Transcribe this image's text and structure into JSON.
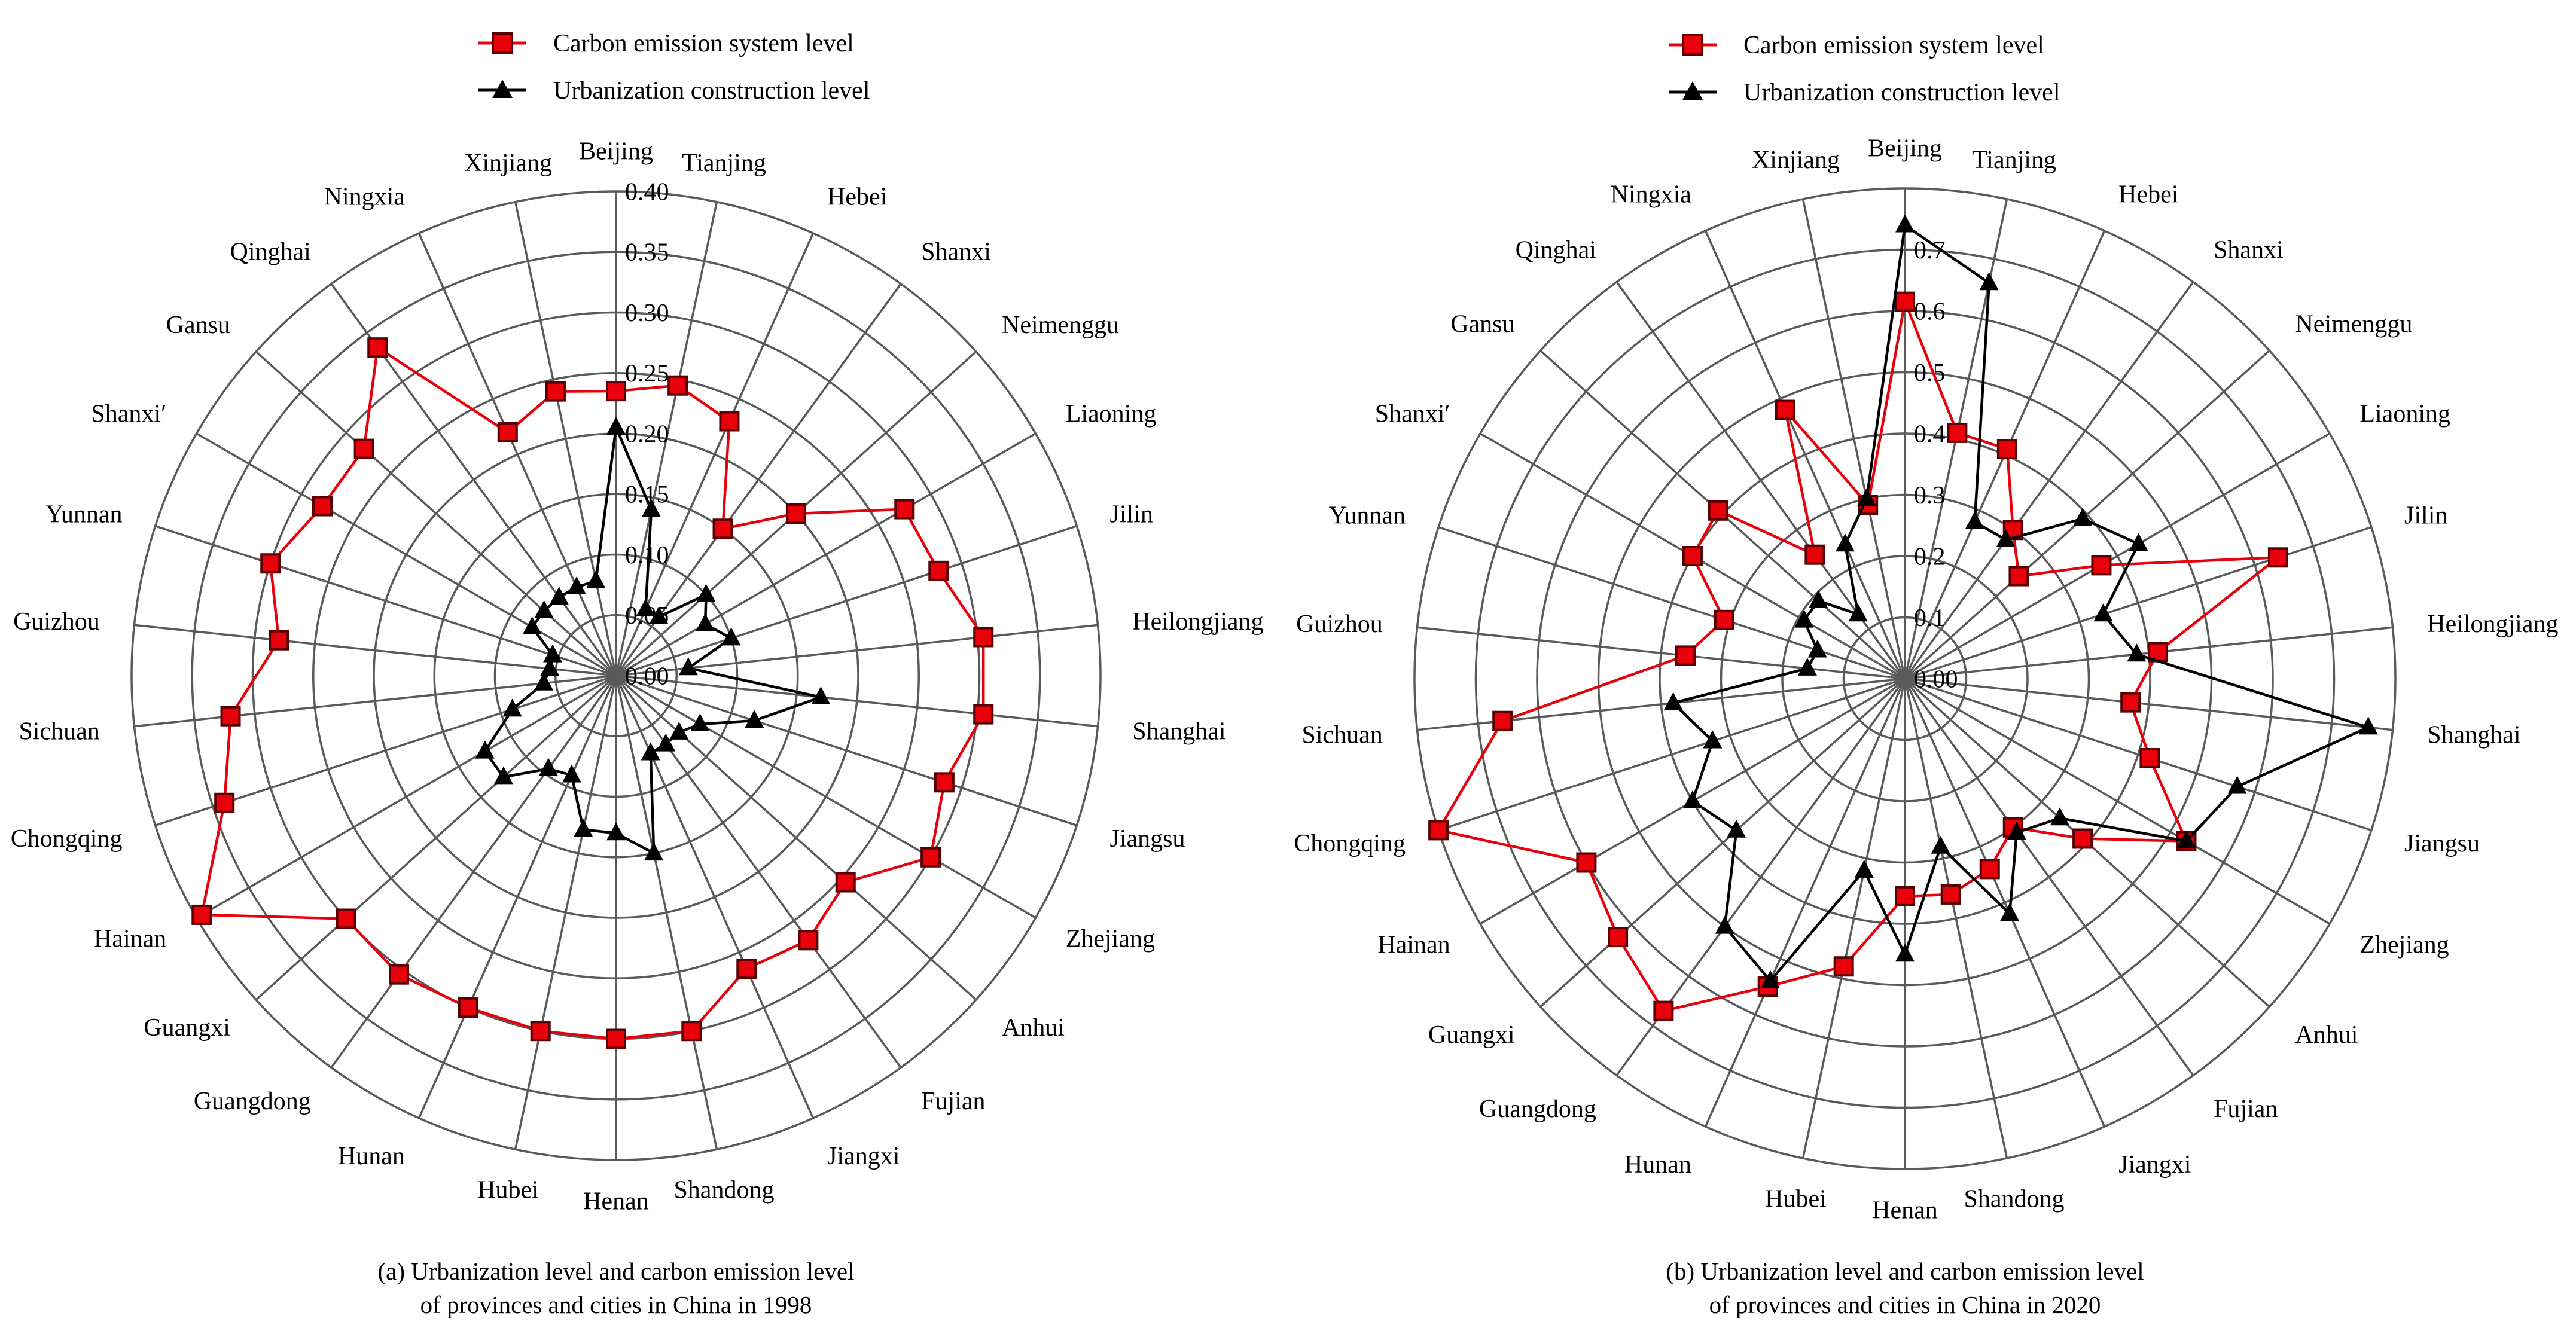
{
  "chart_data": [
    {
      "type": "radar",
      "caption_line1": "(a) Urbanization level and carbon emission level",
      "caption_line2": "of provinces and cities in China in 1998",
      "radial_ticks": [
        "0.00",
        "0.05",
        "0.10",
        "0.15",
        "0.20",
        "0.25",
        "0.30",
        "0.35",
        "0.40"
      ],
      "rmax": 0.4,
      "ring_count": 8,
      "categories": [
        "Beijing",
        "Tianjing",
        "Hebei",
        "Shanxi",
        "Neimenggu",
        "Liaoning",
        "Jilin",
        "Heilongjiang",
        "Shanghai",
        "Jiangsu",
        "Zhejiang",
        "Anhui",
        "Fujian",
        "Jiangxi",
        "Shandong",
        "Henan",
        "Hubei",
        "Hunan",
        "Guangdong",
        "Guangxi",
        "Hainan",
        "Chongqing",
        "Sichuan",
        "Guizhou",
        "Yunnan",
        "Shanxi′",
        "Gansu",
        "Qinghai",
        "Ningxia",
        "Xinjiang"
      ],
      "series": [
        {
          "name": "Carbon emission system level",
          "color": "#e8000b",
          "marker": "square",
          "values": [
            0.235,
            0.245,
            0.23,
            0.15,
            0.2,
            0.275,
            0.28,
            0.305,
            0.305,
            0.285,
            0.3,
            0.255,
            0.27,
            0.265,
            0.3,
            0.3,
            0.3,
            0.3,
            0.305,
            0.3,
            0.395,
            0.34,
            0.32,
            0.28,
            0.3,
            0.28,
            0.28,
            0.335,
            0.22,
            0.24
          ]
        },
        {
          "name": "Urbanization construction level",
          "color": "#000000",
          "marker": "triangle",
          "values": [
            0.205,
            0.14,
            0.06,
            0.06,
            0.1,
            0.085,
            0.1,
            0.06,
            0.17,
            0.12,
            0.08,
            0.07,
            0.07,
            0.07,
            0.15,
            0.13,
            0.13,
            0.09,
            0.095,
            0.125,
            0.125,
            0.09,
            0.06,
            0.055,
            0.055,
            0.08,
            0.08,
            0.08,
            0.08,
            0.08
          ]
        }
      ],
      "legend": [
        {
          "label": "Carbon emission system level",
          "color": "#e8000b",
          "marker": "square"
        },
        {
          "label": "Urbanization construction level",
          "color": "#000000",
          "marker": "triangle"
        }
      ]
    },
    {
      "type": "radar",
      "caption_line1": "(b) Urbanization level and carbon emission level",
      "caption_line2": "of provinces and cities in China in 2020",
      "radial_ticks": [
        "0.00",
        "0.1",
        "0.2",
        "0.3",
        "0.4",
        "0.5",
        "0.6",
        "0.7"
      ],
      "rmax": 0.8,
      "ring_count": 8,
      "categories": [
        "Beijing",
        "Tianjing",
        "Hebei",
        "Shanxi",
        "Neimenggu",
        "Liaoning",
        "Jilin",
        "Heilongjiang",
        "Shanghai",
        "Jiangsu",
        "Zhejiang",
        "Anhui",
        "Fujian",
        "Jiangxi",
        "Shandong",
        "Henan",
        "Hubei",
        "Hunan",
        "Guangdong",
        "Guangxi",
        "Hainan",
        "Chongqing",
        "Sichuan",
        "Guizhou",
        "Yunnan",
        "Shanxi′",
        "Gansu",
        "Qinghai",
        "Ningxia",
        "Xinjiang"
      ],
      "series": [
        {
          "name": "Carbon emission system level",
          "color": "#e8000b",
          "marker": "square",
          "values": [
            0.615,
            0.41,
            0.41,
            0.3,
            0.25,
            0.37,
            0.64,
            0.415,
            0.37,
            0.42,
            0.53,
            0.39,
            0.3,
            0.34,
            0.36,
            0.355,
            0.48,
            0.55,
            0.67,
            0.63,
            0.6,
            0.8,
            0.66,
            0.36,
            0.31,
            0.4,
            0.41,
            0.25,
            0.48,
            0.29
          ]
        },
        {
          "name": "Urbanization construction level",
          "color": "#000000",
          "marker": "triangle",
          "values": [
            0.74,
            0.66,
            0.28,
            0.28,
            0.39,
            0.44,
            0.34,
            0.38,
            0.76,
            0.57,
            0.53,
            0.34,
            0.31,
            0.42,
            0.28,
            0.45,
            0.32,
            0.54,
            0.5,
            0.37,
            0.4,
            0.33,
            0.38,
            0.16,
            0.15,
            0.19,
            0.19,
            0.13,
            0.24,
            0.3
          ]
        }
      ],
      "legend": [
        {
          "label": "Carbon emission system level",
          "color": "#e8000b",
          "marker": "square"
        },
        {
          "label": "Urbanization construction level",
          "color": "#000000",
          "marker": "triangle"
        }
      ]
    }
  ]
}
